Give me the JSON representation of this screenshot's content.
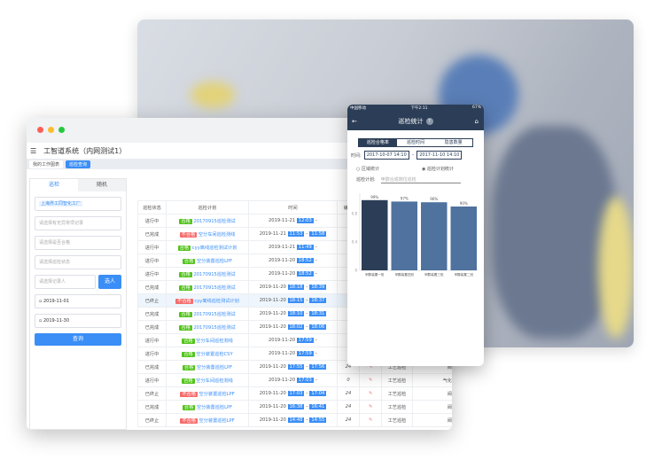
{
  "window": {
    "title": "工智道系统（内网测试1）",
    "tabs": [
      "我的工作图表",
      "巡检查询"
    ]
  },
  "filters": {
    "tabs": [
      "巡检",
      "随机"
    ],
    "factory_tag": "上海界工同智化工厂",
    "placeholders": [
      "请选择有无异常项记录",
      "请选择是否合格",
      "请选择巡检状态",
      "请选择记录人"
    ],
    "select_button": "选人",
    "start_date": "2019-11-01",
    "end_date": "2019-11-30",
    "query_button": "查询"
  },
  "table": {
    "headers": [
      "巡检状态",
      "巡检计划",
      "时间",
      "编写",
      "",
      "",
      ""
    ],
    "rows": [
      {
        "status": "进行中",
        "result": "合格",
        "plan": "20170915巡检测试",
        "date": "2019-11-21",
        "start": "12:03",
        "end": "",
        "w": "",
        "type": "",
        "area": ""
      },
      {
        "status": "已完成",
        "result": "不合格",
        "plan": "空分车间巡检测线",
        "date": "2019-11-21",
        "start": "11:53",
        "end": "11:58",
        "w": "",
        "type": "",
        "area": ""
      },
      {
        "status": "进行中",
        "result": "合格",
        "plan": "cyy离线巡检测试计划",
        "date": "2019-11-21",
        "start": "11:49",
        "end": "",
        "w": "",
        "type": "",
        "area": ""
      },
      {
        "status": "进行中",
        "result": "合格",
        "plan": "空分装置巡检LPF",
        "date": "2019-11-20",
        "start": "18:52",
        "end": "",
        "w": "",
        "type": "",
        "area": ""
      },
      {
        "status": "进行中",
        "result": "合格",
        "plan": "20170915巡检测试",
        "date": "2019-11-20",
        "start": "18:52",
        "end": "",
        "w": "",
        "type": "",
        "area": ""
      },
      {
        "status": "已完成",
        "result": "合格",
        "plan": "20170915巡检测试",
        "date": "2019-11-20",
        "start": "18:18",
        "end": "18:39",
        "w": "",
        "type": "",
        "area": ""
      },
      {
        "status": "已终止",
        "result": "不合格",
        "plan": "cyy离线巡检测试计划",
        "date": "2019-11-20",
        "start": "18:15",
        "end": "18:37",
        "w": "",
        "type": "",
        "area": ""
      },
      {
        "status": "已完成",
        "result": "合格",
        "plan": "20170915巡检测试",
        "date": "2019-11-20",
        "start": "18:10",
        "end": "18:31",
        "w": "",
        "type": "",
        "area": ""
      },
      {
        "status": "已完成",
        "result": "合格",
        "plan": "20170915巡检测试",
        "date": "2019-11-20",
        "start": "18:02",
        "end": "18:06",
        "w": "",
        "type": "",
        "area": ""
      },
      {
        "status": "进行中",
        "result": "合格",
        "plan": "空分车间巡检测线",
        "date": "2019-11-20",
        "start": "17:59",
        "end": "",
        "w": "",
        "type": "",
        "area": ""
      },
      {
        "status": "进行中",
        "result": "合格",
        "plan": "空分装置巡检CSY",
        "date": "2019-11-20",
        "start": "17:59",
        "end": "",
        "w": "",
        "type": "",
        "area": ""
      },
      {
        "status": "已完成",
        "result": "合格",
        "plan": "空分装置巡检LPF",
        "date": "2019-11-20",
        "start": "17:55",
        "end": "17:56",
        "w": "24",
        "type": "工艺巡检",
        "area": "阀体"
      },
      {
        "status": "进行中",
        "result": "合格",
        "plan": "空分车间巡检测线",
        "date": "2019-11-20",
        "start": "17:03",
        "end": "",
        "w": "0",
        "type": "工艺巡检",
        "area": "气化工段"
      },
      {
        "status": "已终止",
        "result": "不合格",
        "plan": "空分装置巡检LPF",
        "date": "2019-11-20",
        "start": "17:03",
        "end": "17:04",
        "w": "24",
        "type": "工艺巡检",
        "area": "阀体"
      },
      {
        "status": "已完成",
        "result": "合格",
        "plan": "空分装置巡检LPF",
        "date": "2019-11-20",
        "start": "16:38",
        "end": "16:41",
        "w": "24",
        "type": "工艺巡检",
        "area": "阀体"
      },
      {
        "status": "已终止",
        "result": "不合格",
        "plan": "空分装置巡检LPF",
        "date": "2019-11-20",
        "start": "14:48",
        "end": "14:55",
        "w": "24",
        "type": "工艺巡检",
        "area": "阀体"
      }
    ]
  },
  "mobile": {
    "carrier": "中国移动",
    "time": "下午2:11",
    "battery": "67%",
    "title": "巡检统计",
    "segments": [
      "巡检合格率",
      "巡检时间",
      "隐患数量"
    ],
    "time_label": "时间:",
    "from": "2017-10-07 14:10",
    "to": "2017-11-10 14:10",
    "radio": [
      "区域统计",
      "巡检计划统计"
    ],
    "plan_label": "巡检计划:",
    "plan_value": "甲醇合成岗位巡检"
  },
  "chart_data": {
    "type": "bar",
    "categories": [
      "甲醇装置一班",
      "甲醇装置四班",
      "甲醇装置三班",
      "甲醇装置二班"
    ],
    "values": [
      0.99,
      0.97,
      0.96,
      0.9
    ],
    "data_labels": [
      "99%",
      "97%",
      "96%",
      "90%"
    ],
    "yticks": [
      "0",
      "0.4",
      "0.8"
    ],
    "ylim": [
      0,
      1
    ],
    "colors": [
      "#2c3e57",
      "#4f729f",
      "#4f729f",
      "#4f729f"
    ]
  }
}
